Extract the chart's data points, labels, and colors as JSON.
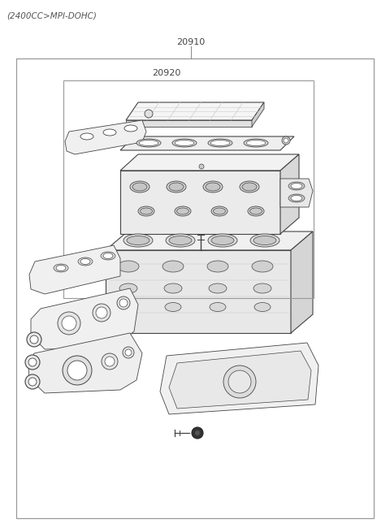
{
  "title_text": "(2400CC>MPI-DOHC)",
  "label_20910": "20910",
  "label_20920": "20920",
  "bg_color": "#ffffff",
  "line_color": "#444444",
  "light_gray": "#cccccc",
  "mid_gray": "#aaaaaa",
  "dark_gray": "#888888",
  "fill_light": "#f0f0f0",
  "fill_mid": "#e0e0e0",
  "fill_dark": "#d0d0d0",
  "figsize": [
    4.8,
    6.55
  ],
  "dpi": 100
}
